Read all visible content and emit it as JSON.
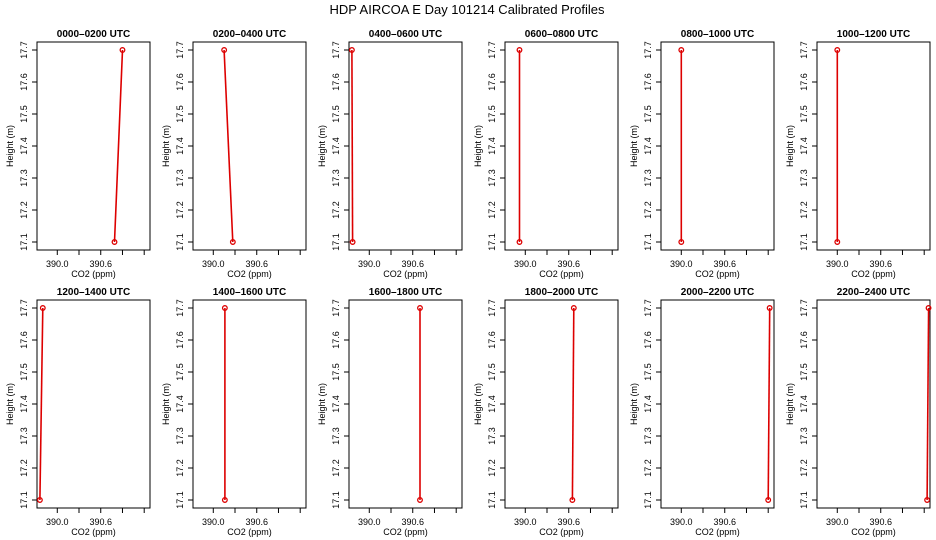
{
  "title": "HDP AIRCOA E  Day 101214  Calibrated Profiles",
  "colors": {
    "series": "#dd0000",
    "axis": "#000000"
  },
  "chart_data": {
    "type": "line",
    "layout": "small-multiples 2x6",
    "xlabel": "CO2 (ppm)",
    "ylabel": "Height (m)",
    "xlim": [
      389.72,
      391.28
    ],
    "ylim": [
      17.075,
      17.725
    ],
    "xticks": [
      390.0,
      390.6
    ],
    "xtick_labels": [
      "390.0",
      "390.6"
    ],
    "xminor": [
      390.3,
      390.9,
      391.2
    ],
    "yticks": [
      17.1,
      17.2,
      17.3,
      17.4,
      17.5,
      17.6,
      17.7
    ],
    "ytick_labels": [
      "17.1",
      "17.2",
      "17.3",
      "17.4",
      "17.5",
      "17.6",
      "17.7"
    ],
    "panels": [
      {
        "title": "0000–0200 UTC",
        "x": [
          390.79,
          390.9
        ],
        "y": [
          17.1,
          17.7
        ]
      },
      {
        "title": "0200–0400 UTC",
        "x": [
          390.15,
          390.27
        ],
        "y": [
          17.7,
          17.1
        ]
      },
      {
        "title": "0400–0600 UTC",
        "x": [
          389.76,
          389.77
        ],
        "y": [
          17.7,
          17.1
        ]
      },
      {
        "title": "0600–0800 UTC",
        "x": [
          389.92,
          389.92
        ],
        "y": [
          17.7,
          17.1
        ]
      },
      {
        "title": "0800–1000 UTC",
        "x": [
          390.0,
          390.0
        ],
        "y": [
          17.7,
          17.1
        ]
      },
      {
        "title": "1000–1200 UTC",
        "x": [
          390.0,
          390.0
        ],
        "y": [
          17.7,
          17.1
        ]
      },
      {
        "title": "1200–1400 UTC",
        "x": [
          389.76,
          389.8
        ],
        "y": [
          17.1,
          17.7
        ]
      },
      {
        "title": "1400–1600 UTC",
        "x": [
          390.16,
          390.16
        ],
        "y": [
          17.7,
          17.1
        ]
      },
      {
        "title": "1600–1800 UTC",
        "x": [
          390.7,
          390.7
        ],
        "y": [
          17.7,
          17.1
        ]
      },
      {
        "title": "1800–2000 UTC",
        "x": [
          390.65,
          390.67
        ],
        "y": [
          17.1,
          17.7
        ]
      },
      {
        "title": "2000–2200 UTC",
        "x": [
          391.2,
          391.22
        ],
        "y": [
          17.1,
          17.7
        ]
      },
      {
        "title": "2200–2400 UTC",
        "x": [
          391.24,
          391.26
        ],
        "y": [
          17.1,
          17.7
        ]
      }
    ]
  }
}
